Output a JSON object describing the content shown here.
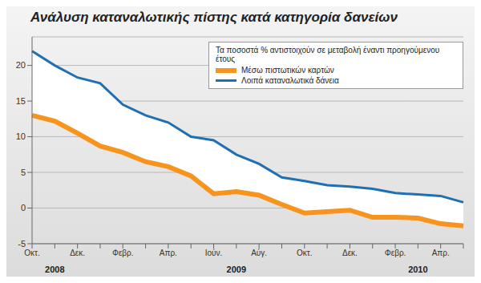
{
  "chart_data": {
    "type": "line",
    "title": "Ανάλυση καταναλωτικής πίστης κατά κατηγορία δανείων",
    "annotation": "Τα ποσοστά % αντιστοιχούν σε μεταβολή έναντι προηγούμενου έτους",
    "categories": [
      "Οκτ.",
      null,
      "Δεκ.",
      null,
      "Φεβρ.",
      null,
      "Απρ.",
      null,
      "Ιούν.",
      null,
      "Αύγ.",
      null,
      "Οκτ.",
      null,
      "Δεκ.",
      null,
      "Φεβρ.",
      null,
      "Απρ.",
      null
    ],
    "x_groups": [
      {
        "label": "2008",
        "start": 0,
        "end": 2
      },
      {
        "label": "2009",
        "start": 3,
        "end": 14
      },
      {
        "label": "2010",
        "start": 15,
        "end": 19
      }
    ],
    "series": [
      {
        "name": "Μέσω πιστωτικών καρτών",
        "color": "#f7941d",
        "values": [
          13,
          12.2,
          10.5,
          8.7,
          7.8,
          6.5,
          5.8,
          4.5,
          2,
          2.3,
          1.8,
          0.5,
          -0.7,
          -0.5,
          -0.3,
          -1.3,
          -1.3,
          -1.4,
          -2.2,
          -2.5
        ]
      },
      {
        "name": "Λοιπά καταναλωτικά δάνεια",
        "color": "#1f6fb5",
        "values": [
          22,
          20,
          18.3,
          17.5,
          14.5,
          13,
          12,
          10,
          9.5,
          7.5,
          6.2,
          4.3,
          3.8,
          3.2,
          3,
          2.7,
          2.1,
          1.9,
          1.7,
          0.8
        ]
      }
    ],
    "ylim": [
      -5,
      24
    ],
    "yticks": [
      -5,
      0,
      5,
      10,
      15,
      20
    ],
    "grid": true,
    "legend": "upper right"
  }
}
